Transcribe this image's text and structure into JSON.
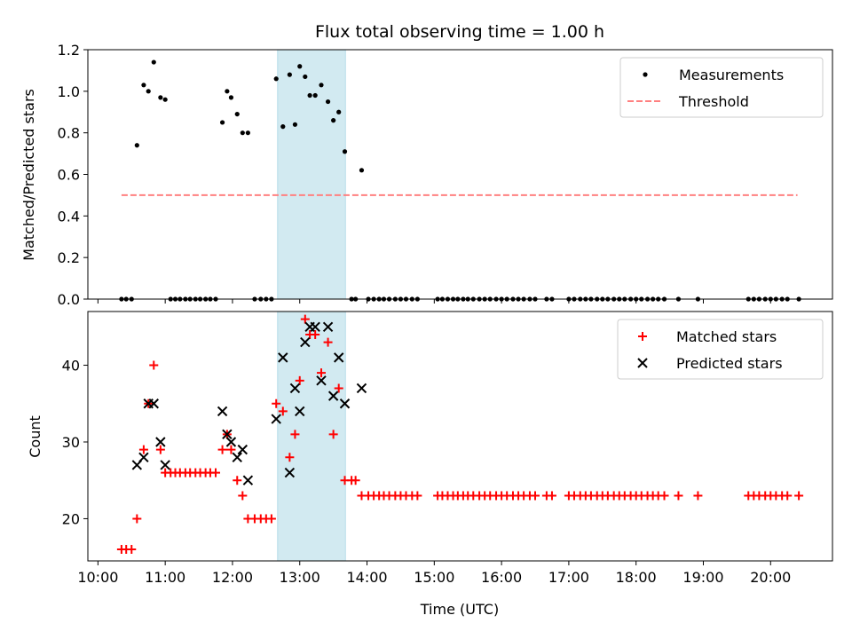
{
  "chart_data": {
    "title": "Flux total observing time = 1.00 h",
    "xlabel": "Time (UTC)",
    "x_ticks": [
      "10:00",
      "11:00",
      "12:00",
      "13:00",
      "14:00",
      "15:00",
      "16:00",
      "17:00",
      "18:00",
      "19:00",
      "20:00"
    ],
    "x_range_hours": [
      9.85,
      20.92
    ],
    "highlight_span_hours": [
      12.67,
      13.68
    ],
    "highlight_color": "#add8e6",
    "panels": [
      {
        "type": "scatter",
        "ylabel": "Matched/Predicted stars",
        "ylim": [
          0,
          1.2
        ],
        "y_ticks": [
          "0.0",
          "0.2",
          "0.4",
          "0.6",
          "0.8",
          "1.0",
          "1.2"
        ],
        "y_tick_values": [
          0,
          0.2,
          0.4,
          0.6,
          0.8,
          1.0,
          1.2
        ],
        "legend_position": "top-right",
        "series": [
          {
            "name": "Measurements",
            "marker": "dot",
            "color": "#000000",
            "x": [
              10.35,
              10.42,
              10.5,
              10.58,
              10.68,
              10.75,
              10.83,
              10.93,
              11.0,
              11.08,
              11.15,
              11.22,
              11.3,
              11.37,
              11.45,
              11.52,
              11.6,
              11.67,
              11.75,
              11.85,
              11.92,
              11.98,
              12.07,
              12.15,
              12.23,
              12.33,
              12.42,
              12.5,
              12.58,
              12.65,
              12.75,
              12.85,
              12.93,
              13.0,
              13.08,
              13.15,
              13.23,
              13.32,
              13.42,
              13.5,
              13.58,
              13.67,
              13.77,
              13.83,
              13.92,
              14.02,
              14.1,
              14.18,
              14.25,
              14.33,
              14.42,
              14.5,
              14.58,
              14.67,
              14.75,
              15.05,
              15.12,
              15.2,
              15.28,
              15.35,
              15.43,
              15.5,
              15.58,
              15.67,
              15.75,
              15.83,
              15.92,
              16.0,
              16.08,
              16.17,
              16.25,
              16.33,
              16.42,
              16.5,
              16.67,
              16.75,
              17.0,
              17.08,
              17.17,
              17.25,
              17.33,
              17.42,
              17.5,
              17.58,
              17.67,
              17.75,
              17.83,
              17.92,
              18.0,
              18.08,
              18.17,
              18.25,
              18.33,
              18.42,
              18.63,
              18.92,
              19.67,
              19.75,
              19.83,
              19.92,
              20.0,
              20.08,
              20.17,
              20.25,
              20.42
            ],
            "y": [
              0,
              0,
              0,
              0.74,
              1.03,
              1.0,
              1.14,
              0.97,
              0.96,
              0,
              0,
              0,
              0,
              0,
              0,
              0,
              0,
              0,
              0,
              0.85,
              1.0,
              0.97,
              0.89,
              0.8,
              0.8,
              0,
              0,
              0,
              0,
              1.06,
              0.83,
              1.08,
              0.84,
              1.12,
              1.07,
              0.98,
              0.98,
              1.03,
              0.95,
              0.86,
              0.9,
              0.71,
              0,
              0,
              0.62,
              0,
              0,
              0,
              0,
              0,
              0,
              0,
              0,
              0,
              0,
              0,
              0,
              0,
              0,
              0,
              0,
              0,
              0,
              0,
              0,
              0,
              0,
              0,
              0,
              0,
              0,
              0,
              0,
              0,
              0,
              0,
              0,
              0,
              0,
              0,
              0,
              0,
              0,
              0,
              0,
              0,
              0,
              0,
              0,
              0,
              0,
              0,
              0,
              0,
              0,
              0,
              0,
              0,
              0,
              0,
              0,
              0,
              0,
              0,
              0
            ]
          },
          {
            "name": "Threshold",
            "type": "line",
            "style": "dashed",
            "color": "#ff8080",
            "x": [
              10.35,
              20.4
            ],
            "y": [
              0.5,
              0.5
            ]
          }
        ]
      },
      {
        "type": "scatter",
        "ylabel": "Count",
        "ylim": [
          14.5,
          47
        ],
        "y_ticks": [
          "20",
          "30",
          "40"
        ],
        "y_tick_values": [
          20,
          30,
          40
        ],
        "legend_position": "top-right",
        "series": [
          {
            "name": "Matched stars",
            "marker": "plus",
            "color": "#ff0000",
            "x": [
              10.35,
              10.42,
              10.5,
              10.58,
              10.68,
              10.75,
              10.83,
              10.93,
              11.0,
              11.08,
              11.15,
              11.22,
              11.3,
              11.37,
              11.45,
              11.52,
              11.6,
              11.67,
              11.75,
              11.85,
              11.92,
              11.98,
              12.07,
              12.15,
              12.23,
              12.33,
              12.42,
              12.5,
              12.58,
              12.65,
              12.75,
              12.85,
              12.93,
              13.0,
              13.08,
              13.15,
              13.23,
              13.32,
              13.42,
              13.5,
              13.58,
              13.67,
              13.77,
              13.83,
              13.92,
              14.02,
              14.1,
              14.18,
              14.25,
              14.33,
              14.42,
              14.5,
              14.58,
              14.67,
              14.75,
              15.05,
              15.12,
              15.2,
              15.28,
              15.35,
              15.43,
              15.5,
              15.58,
              15.67,
              15.75,
              15.83,
              15.92,
              16.0,
              16.08,
              16.17,
              16.25,
              16.33,
              16.42,
              16.5,
              16.67,
              16.75,
              17.0,
              17.08,
              17.17,
              17.25,
              17.33,
              17.42,
              17.5,
              17.58,
              17.67,
              17.75,
              17.83,
              17.92,
              18.0,
              18.08,
              18.17,
              18.25,
              18.33,
              18.42,
              18.63,
              18.92,
              19.67,
              19.75,
              19.83,
              19.92,
              20.0,
              20.08,
              20.17,
              20.25,
              20.42
            ],
            "y": [
              16,
              16,
              16,
              20,
              29,
              35,
              40,
              29,
              26,
              26,
              26,
              26,
              26,
              26,
              26,
              26,
              26,
              26,
              26,
              29,
              31,
              29,
              25,
              23,
              20,
              20,
              20,
              20,
              20,
              35,
              34,
              28,
              31,
              38,
              46,
              44,
              44,
              39,
              43,
              31,
              37,
              25,
              25,
              25,
              23,
              23,
              23,
              23,
              23,
              23,
              23,
              23,
              23,
              23,
              23,
              23,
              23,
              23,
              23,
              23,
              23,
              23,
              23,
              23,
              23,
              23,
              23,
              23,
              23,
              23,
              23,
              23,
              23,
              23,
              23,
              23,
              23,
              23,
              23,
              23,
              23,
              23,
              23,
              23,
              23,
              23,
              23,
              23,
              23,
              23,
              23,
              23,
              23,
              23,
              23,
              23,
              23,
              23,
              23,
              23,
              23,
              23,
              23,
              23,
              23
            ]
          },
          {
            "name": "Predicted stars",
            "marker": "x",
            "color": "#000000",
            "x": [
              10.58,
              10.68,
              10.75,
              10.83,
              10.93,
              11.0,
              11.85,
              11.92,
              11.98,
              12.07,
              12.15,
              12.23,
              12.65,
              12.75,
              12.85,
              12.93,
              13.0,
              13.08,
              13.15,
              13.23,
              13.32,
              13.42,
              13.5,
              13.58,
              13.67,
              13.92
            ],
            "y": [
              27,
              28,
              35,
              35,
              30,
              27,
              34,
              31,
              30,
              28,
              29,
              25,
              33,
              41,
              26,
              37,
              34,
              43,
              45,
              45,
              38,
              45,
              36,
              41,
              35,
              37
            ]
          }
        ]
      }
    ]
  }
}
